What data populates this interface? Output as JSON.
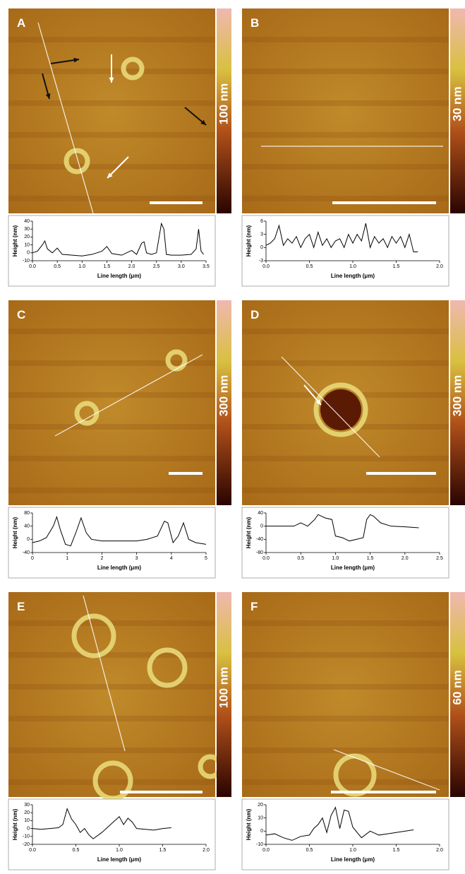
{
  "chart_data": [
    {
      "type": "line",
      "panel": "A",
      "colorbar_label": "100 nm",
      "xlabel": "Line length (μm)",
      "ylabel": "Height (nm)",
      "x": [
        0,
        0.1,
        0.2,
        0.25,
        0.3,
        0.4,
        0.5,
        0.6,
        0.8,
        1.0,
        1.2,
        1.4,
        1.5,
        1.6,
        1.8,
        2.0,
        2.1,
        2.2,
        2.25,
        2.3,
        2.4,
        2.5,
        2.6,
        2.65,
        2.7,
        2.8,
        3.0,
        3.2,
        3.3,
        3.35,
        3.4,
        3.45
      ],
      "series": [
        {
          "color": "#000000",
          "values": [
            0,
            2,
            10,
            15,
            5,
            0,
            6,
            -2,
            -3,
            -4,
            -2,
            2,
            8,
            -1,
            -3,
            3,
            -2,
            12,
            14,
            0,
            -2,
            0,
            37,
            30,
            -2,
            -3,
            -3,
            -2,
            5,
            30,
            2,
            -2
          ]
        }
      ],
      "xlim": [
        0,
        3.5
      ],
      "ylim": [
        -10,
        40
      ],
      "xticks": [
        {
          "value": 0,
          "label": "0.0"
        },
        {
          "value": 0.5,
          "label": "0.5"
        },
        {
          "value": 1,
          "label": "1.0"
        },
        {
          "value": 1.5,
          "label": "1.5"
        },
        {
          "value": 2,
          "label": "2.0"
        },
        {
          "value": 2.5,
          "label": "2.5"
        },
        {
          "value": 3,
          "label": "3.0"
        },
        {
          "value": 3.5,
          "label": "3.5"
        }
      ],
      "yticks": [
        -10,
        0,
        10,
        20,
        30,
        40
      ]
    },
    {
      "type": "line",
      "panel": "B",
      "colorbar_label": "30 nm",
      "xlabel": "Line length (μm)",
      "ylabel": "Height (nm)",
      "x": [
        0,
        0.05,
        0.1,
        0.15,
        0.2,
        0.25,
        0.3,
        0.35,
        0.4,
        0.45,
        0.5,
        0.55,
        0.6,
        0.65,
        0.7,
        0.75,
        0.8,
        0.85,
        0.9,
        0.95,
        1.0,
        1.05,
        1.1,
        1.15,
        1.2,
        1.25,
        1.3,
        1.35,
        1.4,
        1.45,
        1.5,
        1.55,
        1.6,
        1.65,
        1.7,
        1.75
      ],
      "series": [
        {
          "color": "#000000",
          "values": [
            0.5,
            1,
            2,
            5,
            0.5,
            2,
            1,
            2.5,
            0,
            2,
            3,
            0,
            3.5,
            0.5,
            2,
            0,
            1.5,
            2,
            0,
            3,
            1,
            3,
            1.5,
            5.5,
            0,
            2.5,
            1,
            2,
            0,
            2.5,
            1,
            2.5,
            0,
            3,
            -1,
            -1
          ]
        }
      ],
      "xlim": [
        0,
        2
      ],
      "ylim": [
        -3,
        6
      ],
      "xticks": [
        {
          "value": 0,
          "label": "0.0"
        },
        {
          "value": 0.5,
          "label": "0.5"
        },
        {
          "value": 1,
          "label": "1.0"
        },
        {
          "value": 1.5,
          "label": "1.5"
        },
        {
          "value": 2,
          "label": "2.0"
        }
      ],
      "yticks": [
        -3,
        0,
        3,
        6
      ]
    },
    {
      "type": "line",
      "panel": "C",
      "colorbar_label": "300 nm",
      "xlabel": "Line length (μm)",
      "ylabel": "Height (nm)",
      "x": [
        0,
        0.2,
        0.4,
        0.6,
        0.7,
        0.8,
        0.95,
        1.1,
        1.25,
        1.4,
        1.55,
        1.7,
        2,
        2.5,
        3,
        3.3,
        3.6,
        3.8,
        3.9,
        4.05,
        4.2,
        4.35,
        4.5,
        4.7,
        5
      ],
      "series": [
        {
          "color": "#000000",
          "values": [
            -10,
            -5,
            5,
            40,
            68,
            30,
            -15,
            -20,
            20,
            65,
            20,
            0,
            -5,
            -5,
            -5,
            0,
            10,
            55,
            50,
            -10,
            10,
            50,
            0,
            -10,
            -15
          ]
        }
      ],
      "xlim": [
        0,
        5
      ],
      "ylim": [
        -40,
        80
      ],
      "xticks": [
        0,
        1,
        2,
        3,
        4,
        5
      ],
      "yticks": [
        -40,
        0,
        40,
        80
      ]
    },
    {
      "type": "line",
      "panel": "D",
      "colorbar_label": "300 nm",
      "xlabel": "Line length (μm)",
      "ylabel": "Height (nm)",
      "x": [
        0,
        0.2,
        0.4,
        0.5,
        0.6,
        0.7,
        0.75,
        0.85,
        0.95,
        1.0,
        1.1,
        1.2,
        1.3,
        1.4,
        1.45,
        1.5,
        1.55,
        1.65,
        1.8,
        2.0,
        2.2
      ],
      "series": [
        {
          "color": "#000000",
          "values": [
            0,
            0,
            0,
            10,
            0,
            20,
            35,
            25,
            20,
            -30,
            -35,
            -45,
            -40,
            -35,
            20,
            35,
            30,
            10,
            0,
            -2,
            -5
          ]
        }
      ],
      "xlim": [
        0,
        2.5
      ],
      "ylim": [
        -80,
        40
      ],
      "xticks": [
        {
          "value": 0,
          "label": "0.0"
        },
        {
          "value": 0.5,
          "label": "0.5"
        },
        {
          "value": 1,
          "label": "1.0"
        },
        {
          "value": 1.5,
          "label": "1.5"
        },
        {
          "value": 2,
          "label": "2.0"
        },
        {
          "value": 2.5,
          "label": "2.5"
        }
      ],
      "yticks": [
        -80,
        -40,
        0,
        40
      ]
    },
    {
      "type": "line",
      "panel": "E",
      "colorbar_label": "100 nm",
      "xlabel": "Line length (μm)",
      "ylabel": "Height (nm)",
      "x": [
        0,
        0.1,
        0.2,
        0.3,
        0.35,
        0.4,
        0.45,
        0.5,
        0.55,
        0.6,
        0.65,
        0.7,
        0.8,
        0.9,
        0.95,
        1.0,
        1.05,
        1.1,
        1.15,
        1.2,
        1.3,
        1.4,
        1.5,
        1.6
      ],
      "series": [
        {
          "color": "#000000",
          "values": [
            0,
            -1,
            0,
            1,
            5,
            25,
            12,
            5,
            -5,
            0,
            -8,
            -13,
            -5,
            5,
            10,
            15,
            5,
            13,
            8,
            0,
            -1,
            -2,
            0,
            1
          ]
        }
      ],
      "xlim": [
        0,
        2
      ],
      "ylim": [
        -20,
        30
      ],
      "xticks": [
        {
          "value": 0,
          "label": "0.0"
        },
        {
          "value": 0.5,
          "label": "0.5"
        },
        {
          "value": 1,
          "label": "1.0"
        },
        {
          "value": 1.5,
          "label": "1.5"
        },
        {
          "value": 2,
          "label": "2.0"
        }
      ],
      "yticks": [
        -20,
        -10,
        0,
        10,
        20,
        30
      ]
    },
    {
      "type": "line",
      "panel": "F",
      "colorbar_label": "60 nm",
      "xlabel": "Line length (μm)",
      "ylabel": "Height (nm)",
      "x": [
        0,
        0.1,
        0.2,
        0.3,
        0.4,
        0.5,
        0.55,
        0.6,
        0.65,
        0.7,
        0.75,
        0.8,
        0.85,
        0.9,
        0.95,
        1.0,
        1.1,
        1.2,
        1.3,
        1.4,
        1.5,
        1.6,
        1.7
      ],
      "series": [
        {
          "color": "#000000",
          "values": [
            -3,
            -2,
            -5,
            -7,
            -4,
            -3,
            2,
            5,
            10,
            -1,
            12,
            18,
            2,
            16,
            15,
            3,
            -5,
            0,
            -3,
            -2,
            -1,
            0,
            1
          ]
        }
      ],
      "xlim": [
        0,
        2
      ],
      "ylim": [
        -10,
        20
      ],
      "xticks": [
        {
          "value": 0,
          "label": "0.0"
        },
        {
          "value": 0.5,
          "label": "0.5"
        },
        {
          "value": 1,
          "label": "1.0"
        },
        {
          "value": 1.5,
          "label": "1.5"
        },
        {
          "value": 2,
          "label": "2.0"
        }
      ],
      "yticks": [
        -10,
        0,
        10,
        20
      ]
    }
  ]
}
